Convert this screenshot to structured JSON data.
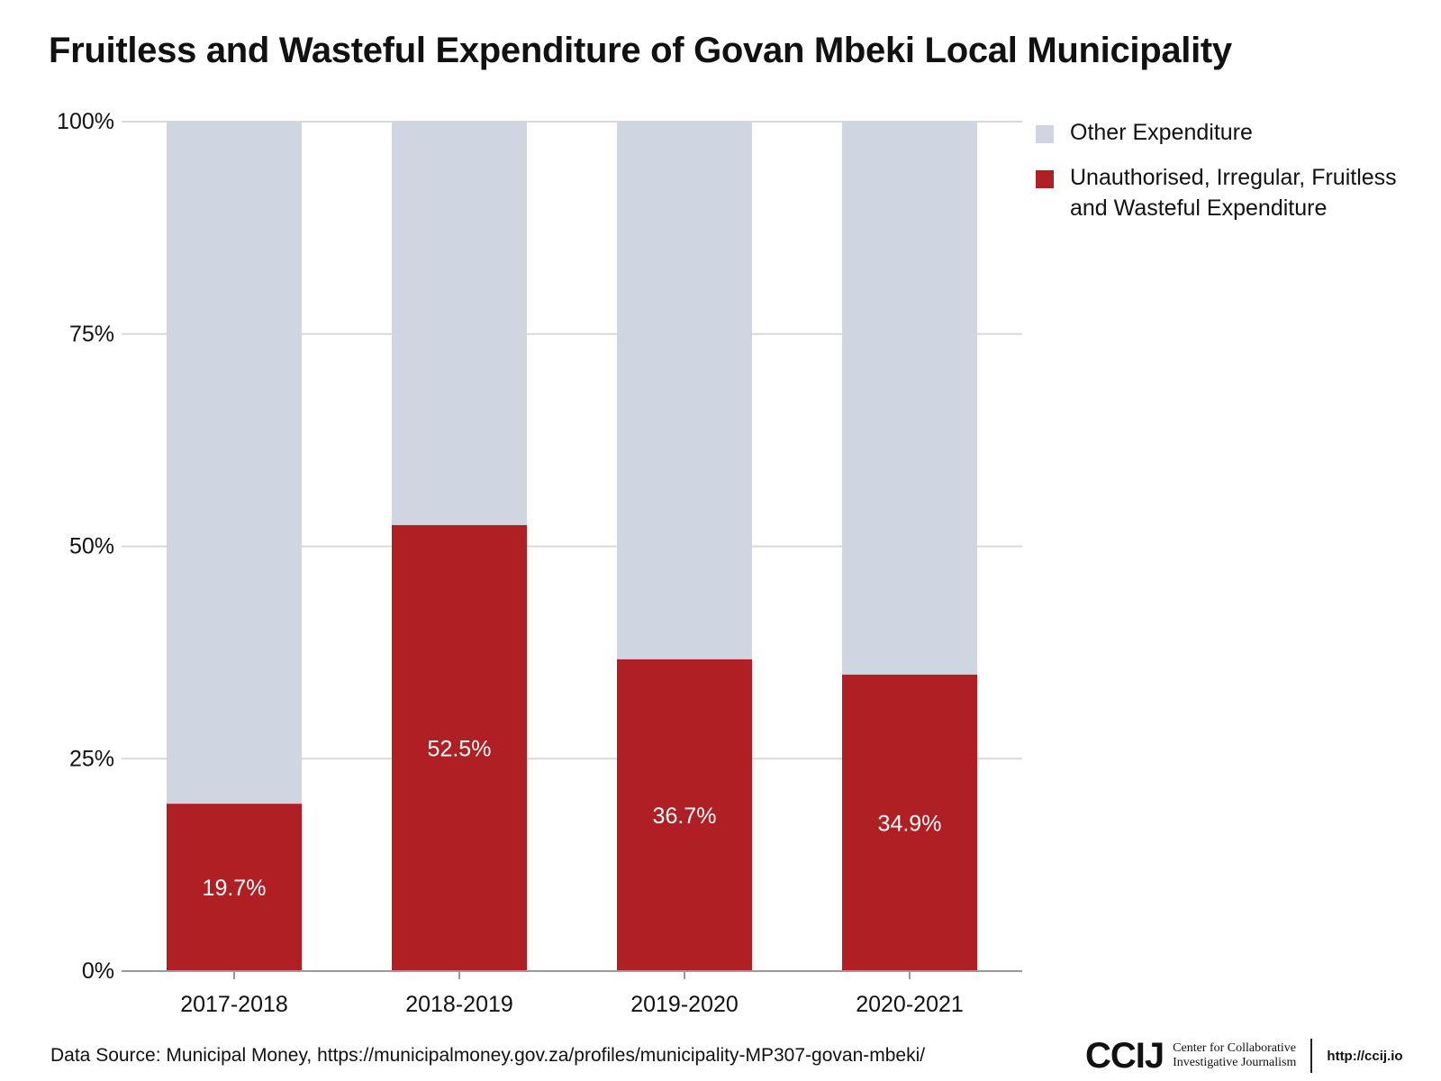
{
  "chart_data": {
    "type": "bar",
    "stacked": true,
    "title": "Fruitless and Wasteful Expenditure of Govan Mbeki Local Municipality",
    "categories": [
      "2017-2018",
      "2018-2019",
      "2019-2020",
      "2020-2021"
    ],
    "series": [
      {
        "name": "Unauthorised, Irregular, Fruitless and Wasteful Expenditure",
        "values": [
          19.7,
          52.5,
          36.7,
          34.9
        ],
        "labels": [
          "19.7%",
          "52.5%",
          "36.7%",
          "34.9%"
        ],
        "color": "#b01f24"
      },
      {
        "name": "Other Expenditure",
        "values": [
          80.3,
          47.5,
          63.3,
          65.1
        ],
        "color": "#cfd5e1"
      }
    ],
    "ylim": [
      0,
      100
    ],
    "yticks": [
      0,
      25,
      50,
      75,
      100
    ],
    "ytick_labels": [
      "0%",
      "25%",
      "50%",
      "75%",
      "100%"
    ],
    "xlabel": "",
    "ylabel": "",
    "grid": true,
    "legend_position": "right"
  },
  "legend": {
    "items": [
      {
        "label": "Other Expenditure",
        "color": "#cfd5e1"
      },
      {
        "label": "Unauthorised, Irregular, Fruitless and Wasteful Expenditure",
        "color": "#b01f24"
      }
    ]
  },
  "footer": {
    "source": "Data Source: Municipal Money, https://municipalmoney.gov.za/profiles/municipality-MP307-govan-mbeki/",
    "logo_mark": "CCIJ",
    "logo_line1": "Center for Collaborative",
    "logo_line2": "Investigative Journalism",
    "logo_url": "http://ccij.io"
  }
}
